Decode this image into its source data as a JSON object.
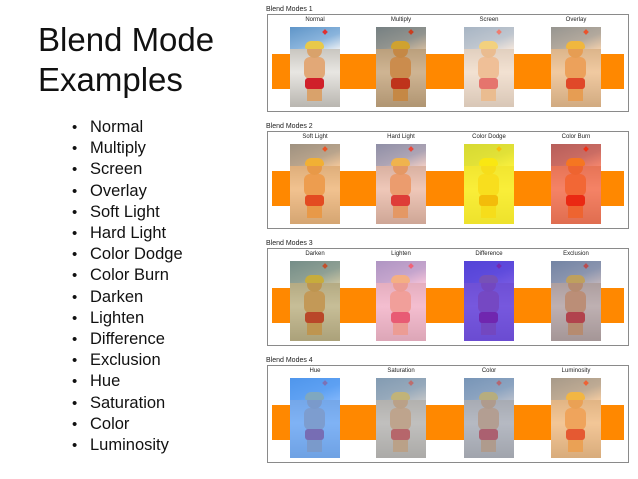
{
  "slide": {
    "title_line1": "Blend Mode",
    "title_line2": "Examples",
    "bullets": [
      "Normal",
      "Multiply",
      "Screen",
      "Overlay",
      "Soft Light",
      "Hard Light",
      "Color Dodge",
      "Color Burn",
      "Darken",
      "Lighten",
      "Difference",
      "Exclusion",
      "Hue",
      "Saturation",
      "Color",
      "Luminosity"
    ]
  },
  "panels": [
    {
      "caption": "Blend Modes 1",
      "modes": [
        "Normal",
        "Multiply",
        "Screen",
        "Overlay"
      ]
    },
    {
      "caption": "Blend Modes 2",
      "modes": [
        "Soft Light",
        "Hard Light",
        "Color Dodge",
        "Color Burn"
      ]
    },
    {
      "caption": "Blend Modes 3",
      "modes": [
        "Darken",
        "Lighten",
        "Difference",
        "Exclusion"
      ]
    },
    {
      "caption": "Blend Modes 4",
      "modes": [
        "Hue",
        "Saturation",
        "Color",
        "Luminosity"
      ]
    }
  ],
  "colors": {
    "orange_band": "#ff8800",
    "swimsuit_red": "#d0202a",
    "sky_blue": "#6fa3d4"
  },
  "icons": [
    "photo-thumbnail-icon"
  ]
}
